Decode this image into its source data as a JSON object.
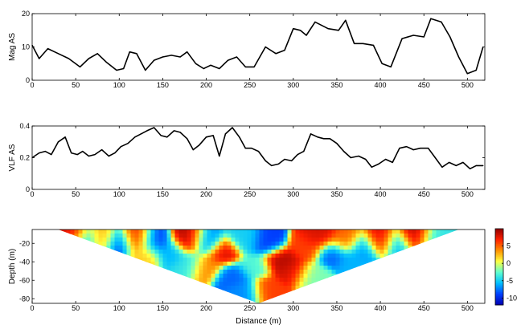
{
  "chart_data": [
    {
      "type": "line",
      "ylabel": "Mag AS",
      "xlim": [
        0,
        520
      ],
      "ylim": [
        0,
        20
      ],
      "xticks": [
        "0",
        "50",
        "100",
        "150",
        "200",
        "250",
        "300",
        "350",
        "400",
        "450",
        "500"
      ],
      "yticks": [
        "0",
        "10",
        "20"
      ],
      "color": "#000000",
      "x": [
        0,
        8,
        18,
        30,
        42,
        55,
        65,
        75,
        85,
        97,
        105,
        112,
        120,
        130,
        140,
        150,
        160,
        170,
        178,
        188,
        197,
        205,
        215,
        225,
        235,
        245,
        255,
        268,
        280,
        290,
        300,
        308,
        315,
        325,
        340,
        352,
        360,
        370,
        380,
        392,
        402,
        412,
        425,
        438,
        450,
        458,
        470,
        480,
        490,
        500,
        510,
        518
      ],
      "y": [
        10.5,
        6.5,
        9.5,
        8,
        6.5,
        4,
        6.5,
        8,
        5.5,
        3,
        3.5,
        8.5,
        8,
        3,
        6,
        7,
        7.5,
        7,
        8.5,
        5,
        3.5,
        4.5,
        3.5,
        6,
        7,
        4,
        4,
        10,
        8,
        9,
        15.5,
        15,
        13.5,
        17.5,
        15.5,
        15,
        18,
        11,
        11,
        10.5,
        5,
        4,
        12.5,
        13.5,
        13,
        18.5,
        17.5,
        13,
        7,
        2,
        3,
        10
      ]
    },
    {
      "type": "line",
      "ylabel": "VLF AS",
      "xlim": [
        0,
        520
      ],
      "ylim": [
        0,
        0.4
      ],
      "xticks": [
        "0",
        "50",
        "100",
        "150",
        "200",
        "250",
        "300",
        "350",
        "400",
        "450",
        "500"
      ],
      "yticks": [
        "0",
        "0.2",
        "0.4"
      ],
      "color": "#000000",
      "x": [
        0,
        8,
        15,
        22,
        30,
        38,
        45,
        52,
        58,
        65,
        72,
        80,
        88,
        95,
        102,
        110,
        118,
        125,
        132,
        140,
        148,
        155,
        163,
        170,
        178,
        185,
        192,
        200,
        208,
        215,
        222,
        230,
        238,
        245,
        252,
        260,
        268,
        275,
        283,
        290,
        298,
        305,
        312,
        320,
        328,
        335,
        342,
        350,
        358,
        366,
        375,
        383,
        390,
        398,
        406,
        414,
        422,
        430,
        438,
        446,
        455,
        463,
        471,
        479,
        487,
        495,
        503,
        510,
        518
      ],
      "y": [
        0.2,
        0.23,
        0.24,
        0.22,
        0.3,
        0.33,
        0.23,
        0.22,
        0.24,
        0.21,
        0.22,
        0.25,
        0.21,
        0.23,
        0.27,
        0.29,
        0.33,
        0.35,
        0.37,
        0.39,
        0.34,
        0.33,
        0.37,
        0.36,
        0.32,
        0.25,
        0.28,
        0.33,
        0.34,
        0.21,
        0.35,
        0.39,
        0.33,
        0.26,
        0.26,
        0.24,
        0.18,
        0.15,
        0.16,
        0.19,
        0.18,
        0.22,
        0.24,
        0.35,
        0.33,
        0.32,
        0.32,
        0.29,
        0.24,
        0.2,
        0.21,
        0.19,
        0.14,
        0.16,
        0.19,
        0.17,
        0.26,
        0.27,
        0.25,
        0.26,
        0.26,
        0.2,
        0.14,
        0.17,
        0.15,
        0.17,
        0.13,
        0.15,
        0.15
      ]
    },
    {
      "type": "heatmap",
      "ylabel": "Depth (m)",
      "xlabel": "Distance (m)",
      "xlim": [
        0,
        520
      ],
      "ylim": [
        -85,
        -5
      ],
      "xticks": [
        "0",
        "50",
        "100",
        "150",
        "200",
        "250",
        "300",
        "350",
        "400",
        "450",
        "500"
      ],
      "yticks": [
        "-20",
        "-40",
        "-60",
        "-80"
      ],
      "section_top_x": [
        30,
        490
      ],
      "section_apex": [
        260,
        -85
      ],
      "colorbar": {
        "ticks": [
          "5",
          "0",
          "-5",
          "-10"
        ],
        "range": [
          -12,
          10
        ],
        "colors": [
          "#0000b0",
          "#0040ff",
          "#00c0ff",
          "#60ffd0",
          "#ffff40",
          "#ff9000",
          "#ff2000",
          "#900000"
        ]
      },
      "blobs": [
        {
          "x": 45,
          "d": -15,
          "v": 8
        },
        {
          "x": 60,
          "d": -20,
          "v": -6
        },
        {
          "x": 80,
          "d": -18,
          "v": 3
        },
        {
          "x": 100,
          "d": -22,
          "v": -9
        },
        {
          "x": 120,
          "d": -18,
          "v": 7
        },
        {
          "x": 140,
          "d": -20,
          "v": -9
        },
        {
          "x": 160,
          "d": -30,
          "v": -6
        },
        {
          "x": 180,
          "d": -18,
          "v": 9
        },
        {
          "x": 200,
          "d": -20,
          "v": -7
        },
        {
          "x": 220,
          "d": -30,
          "v": 8
        },
        {
          "x": 230,
          "d": -55,
          "v": -8
        },
        {
          "x": 245,
          "d": -18,
          "v": -5
        },
        {
          "x": 255,
          "d": -45,
          "v": -3
        },
        {
          "x": 270,
          "d": -20,
          "v": -9
        },
        {
          "x": 285,
          "d": -38,
          "v": 9
        },
        {
          "x": 300,
          "d": -50,
          "v": 8
        },
        {
          "x": 315,
          "d": -25,
          "v": 6
        },
        {
          "x": 330,
          "d": -15,
          "v": 8
        },
        {
          "x": 345,
          "d": -30,
          "v": -8
        },
        {
          "x": 360,
          "d": -18,
          "v": 5
        },
        {
          "x": 380,
          "d": -25,
          "v": -7
        },
        {
          "x": 400,
          "d": -18,
          "v": 8
        },
        {
          "x": 420,
          "d": -22,
          "v": -6
        },
        {
          "x": 440,
          "d": -15,
          "v": 9
        },
        {
          "x": 460,
          "d": -18,
          "v": -4
        },
        {
          "x": 200,
          "d": -45,
          "v": 4
        },
        {
          "x": 320,
          "d": -55,
          "v": -2
        },
        {
          "x": 370,
          "d": -40,
          "v": -6
        },
        {
          "x": 130,
          "d": -32,
          "v": 2
        },
        {
          "x": 180,
          "d": -42,
          "v": -4
        },
        {
          "x": 270,
          "d": -70,
          "v": 6
        },
        {
          "x": 245,
          "d": -72,
          "v": -7
        }
      ]
    }
  ]
}
